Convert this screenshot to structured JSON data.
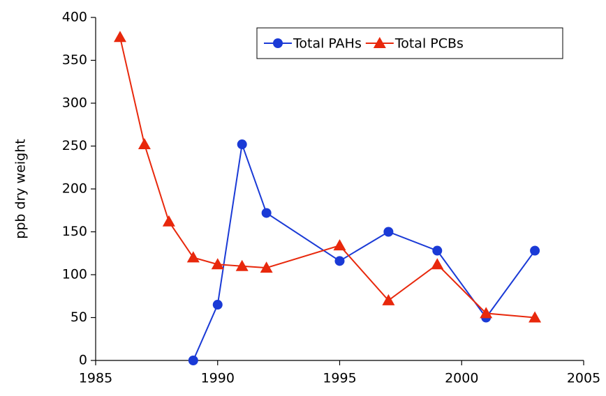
{
  "chart_data": {
    "type": "line",
    "y_label": "ppb dry weight",
    "xlim": [
      1985,
      2005
    ],
    "xticks": [
      1985,
      1990,
      1995,
      2000,
      2005
    ],
    "ylim": [
      0,
      400
    ],
    "yticks": [
      0,
      50,
      100,
      150,
      200,
      250,
      300,
      350,
      400
    ],
    "grid": false,
    "legend": "upper right",
    "series": [
      {
        "name": "Total PAHs",
        "color": "#1a3ad6",
        "marker": "circle",
        "x": [
          1989,
          1990,
          1991,
          1992,
          1995,
          1997,
          1999,
          2001,
          2003
        ],
        "values": [
          0,
          65,
          252,
          172,
          116,
          150,
          128,
          50,
          128
        ]
      },
      {
        "name": "Total PCBs",
        "color": "#e8280c",
        "marker": "triangle",
        "x": [
          1986,
          1987,
          1988,
          1989,
          1990,
          1991,
          1992,
          1995,
          1997,
          1999,
          2001,
          2003
        ],
        "values": [
          377,
          252,
          162,
          120,
          112,
          110,
          108,
          134,
          70,
          112,
          55,
          50
        ]
      }
    ]
  }
}
